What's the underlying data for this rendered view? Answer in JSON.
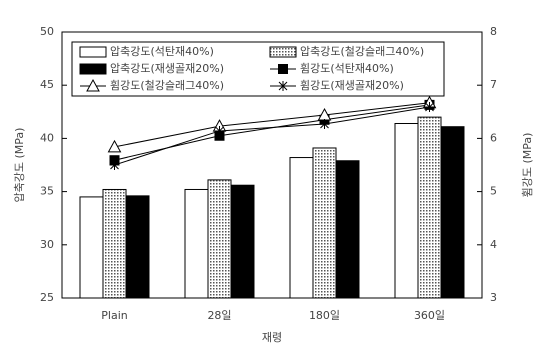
{
  "chart_data": {
    "type": "bar",
    "categories": [
      "Plain",
      "28일",
      "180일",
      "360일"
    ],
    "ylabel": "압축강도 (MPa)",
    "y2label": "휨강도 (MPa)",
    "xlabel": "재령",
    "ylim": [
      25,
      50
    ],
    "yticks": [
      25,
      30,
      35,
      40,
      45,
      50
    ],
    "y2lim": [
      3,
      8
    ],
    "y2ticks": [
      3,
      4,
      5,
      6,
      7,
      8
    ],
    "legend": "top-left",
    "series": [
      {
        "name": "압축강도(석탄재40%)",
        "color": "#ffffff",
        "values": [
          34.5,
          35.2,
          38.2,
          41.4
        ]
      },
      {
        "name": "압축강도(철강슬래그40%)",
        "color": "#d0d0d0",
        "pattern": "dots",
        "values": [
          35.2,
          36.1,
          39.1,
          42.0
        ]
      },
      {
        "name": "압축강도(재생골재20%)",
        "color": "#000000",
        "values": [
          34.6,
          35.6,
          37.9,
          41.1
        ]
      },
      {
        "name": "휨강도(석탄재40%)",
        "type": "line",
        "axis": "y2",
        "marker": "square",
        "color": "#000000",
        "values": [
          5.59,
          6.05,
          6.35,
          6.63
        ]
      },
      {
        "name": "휨강도(철강슬래그40%)",
        "type": "line",
        "axis": "y2",
        "marker": "triangle",
        "color": "#000000",
        "values": [
          5.84,
          6.23,
          6.44,
          6.67
        ]
      },
      {
        "name": "휨강도(재생골재20%)",
        "type": "line",
        "axis": "y2",
        "marker": "star",
        "color": "#000000",
        "values": [
          5.5,
          6.14,
          6.27,
          6.59
        ]
      }
    ]
  }
}
